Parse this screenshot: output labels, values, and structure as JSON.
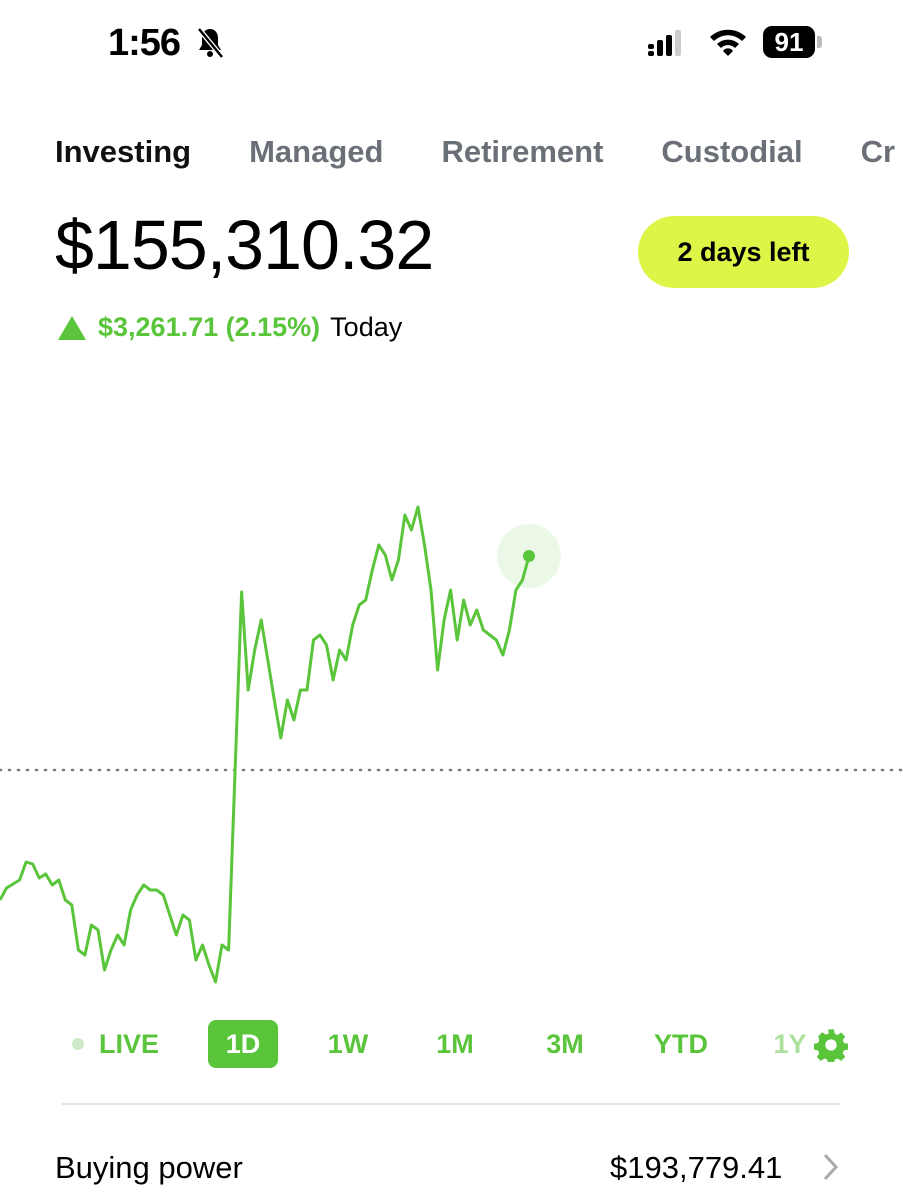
{
  "status_bar": {
    "time": "1:56",
    "battery": "91",
    "icons": [
      "bell-slash-icon",
      "cellular-signal-icon",
      "wifi-icon",
      "battery-icon"
    ]
  },
  "tabs": [
    {
      "label": "Investing",
      "active": true
    },
    {
      "label": "Managed"
    },
    {
      "label": "Retirement"
    },
    {
      "label": "Custodial"
    },
    {
      "label": "Cr"
    }
  ],
  "portfolio": {
    "balance": "$155,310.32",
    "change": "$3,261.71 (2.15%)",
    "change_period": "Today",
    "trial_badge": "2 days left"
  },
  "colors": {
    "accent": "#5ac53b",
    "badge": "#ddf547"
  },
  "ranges": [
    {
      "label": "LIVE"
    },
    {
      "label": "1D",
      "active": true
    },
    {
      "label": "1W"
    },
    {
      "label": "1M"
    },
    {
      "label": "3M"
    },
    {
      "label": "YTD"
    },
    {
      "label": "1Y"
    }
  ],
  "buying_power": {
    "label": "Buying power",
    "value": "$193,779.41"
  },
  "chart_data": {
    "type": "line",
    "period": "1D",
    "previous_close": 152048.61,
    "reference_line": "dotted",
    "grid": false,
    "values": [
      150068,
      150250,
      150311,
      150372,
      150646,
      150616,
      150403,
      150464,
      150296,
      150372,
      150068,
      149991,
      149305,
      149229,
      149686,
      149610,
      149000,
      149305,
      149534,
      149382,
      149915,
      150144,
      150296,
      150220,
      150220,
      150144,
      149839,
      149534,
      149839,
      149763,
      149153,
      149382,
      149077,
      148818,
      149382,
      149305,
      152049,
      154761,
      153268,
      153877,
      154335,
      153725,
      153115,
      152537,
      153115,
      152811,
      153268,
      153268,
      154030,
      154106,
      153954,
      153420,
      153877,
      153725,
      154258,
      154563,
      154639,
      155097,
      155478,
      155325,
      154945,
      155249,
      155935,
      155706,
      156057,
      155478,
      154791,
      153573,
      154335,
      154791,
      154030,
      154639,
      154258,
      154487,
      154182,
      154106,
      154030,
      153801,
      154182,
      154791,
      154944,
      155310.32
    ]
  }
}
